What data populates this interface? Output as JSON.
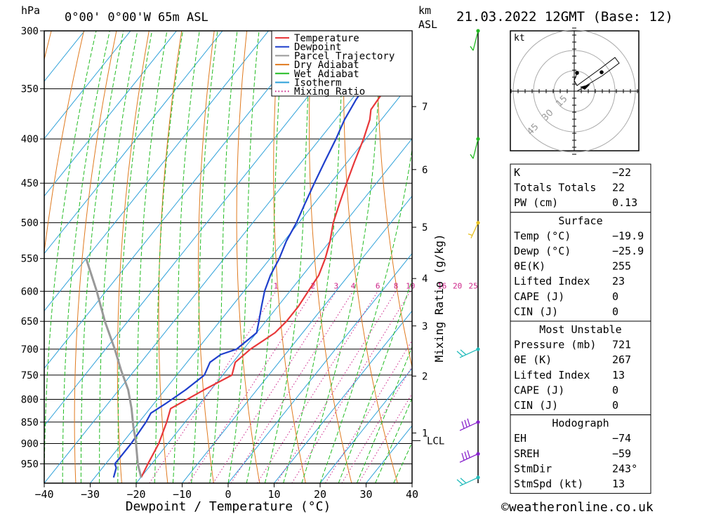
{
  "header": {
    "unit_left": "hPa",
    "location": "0°00' 0°00'W 65m ASL",
    "unit_right_1": "km",
    "unit_right_2": "ASL",
    "datetime": "21.03.2022 12GMT (Base: 12)"
  },
  "chart_data": {
    "type": "line",
    "xlabel": "Dewpoint / Temperature (°C)",
    "ylabel_left": "hPa",
    "ylabel_right": "Mixing Ratio (g/kg)",
    "xlim": [
      -40,
      40
    ],
    "ylim": [
      300,
      1000
    ],
    "x_ticks": [
      -40,
      -30,
      -20,
      -10,
      0,
      10,
      20,
      30,
      40
    ],
    "x_tick_labels": [
      "−40",
      "−30",
      "−20",
      "−10",
      "0",
      "10",
      "20",
      "30",
      "40"
    ],
    "pressure_ticks": [
      300,
      350,
      400,
      450,
      500,
      550,
      600,
      650,
      700,
      750,
      800,
      850,
      900,
      950
    ],
    "km_ticks": [
      {
        "km": "1",
        "p": 875
      },
      {
        "km": "2",
        "p": 752
      },
      {
        "km": "3",
        "p": 658
      },
      {
        "km": "4",
        "p": 580
      },
      {
        "km": "5",
        "p": 506
      },
      {
        "km": "6",
        "p": 434
      },
      {
        "km": "7",
        "p": 367
      }
    ],
    "lcl": {
      "label": "LCL",
      "p": 893
    },
    "mixing_ratio_labels": [
      "1",
      "2",
      "3",
      "4",
      "6",
      "8",
      "10",
      "16",
      "20",
      "25"
    ],
    "legend": {
      "placement": "top-center",
      "entries": [
        {
          "name": "Temperature",
          "color": "#e8383a",
          "style": "solid"
        },
        {
          "name": "Dewpoint",
          "color": "#1f3fcc",
          "style": "solid"
        },
        {
          "name": "Parcel Trajectory",
          "color": "#999999",
          "style": "solid"
        },
        {
          "name": "Dry Adiabat",
          "color": "#e07a1f",
          "style": "solid"
        },
        {
          "name": "Wet Adiabat",
          "color": "#22bb22",
          "style": "solid"
        },
        {
          "name": "Isotherm",
          "color": "#2a9fd8",
          "style": "solid"
        },
        {
          "name": "Mixing Ratio",
          "color": "#cc2288",
          "style": "dotted"
        }
      ]
    },
    "series": [
      {
        "name": "Temperature",
        "points": [
          [
            -19.9,
            985
          ],
          [
            -20.8,
            950
          ],
          [
            -22.0,
            900
          ],
          [
            -24.0,
            850
          ],
          [
            -25.5,
            820
          ],
          [
            -21.5,
            780
          ],
          [
            -18.0,
            750
          ],
          [
            -19.5,
            725
          ],
          [
            -18.5,
            700
          ],
          [
            -16.0,
            670
          ],
          [
            -15.5,
            650
          ],
          [
            -15.5,
            625
          ],
          [
            -16.0,
            600
          ],
          [
            -16.5,
            575
          ],
          [
            -18.0,
            550
          ],
          [
            -20.0,
            525
          ],
          [
            -22.5,
            500
          ],
          [
            -24.5,
            475
          ],
          [
            -26.5,
            450
          ],
          [
            -28.5,
            425
          ],
          [
            -30.5,
            400
          ],
          [
            -32.5,
            380
          ],
          [
            -34.0,
            370
          ],
          [
            -34.5,
            350
          ],
          [
            -34.5,
            330
          ],
          [
            -34.5,
            310
          ],
          [
            -33.5,
            300
          ]
        ]
      },
      {
        "name": "Dewpoint",
        "points": [
          [
            -25.9,
            985
          ],
          [
            -27.0,
            960
          ],
          [
            -28.0,
            950
          ],
          [
            -28.0,
            900
          ],
          [
            -28.5,
            850
          ],
          [
            -29.0,
            830
          ],
          [
            -27.5,
            810
          ],
          [
            -25.5,
            780
          ],
          [
            -24.0,
            750
          ],
          [
            -25.0,
            725
          ],
          [
            -24.0,
            710
          ],
          [
            -21.5,
            700
          ],
          [
            -20.0,
            670
          ],
          [
            -21.5,
            650
          ],
          [
            -23.5,
            625
          ],
          [
            -25.5,
            600
          ],
          [
            -27.0,
            575
          ],
          [
            -28.0,
            550
          ],
          [
            -29.5,
            525
          ],
          [
            -30.5,
            500
          ],
          [
            -32.0,
            475
          ],
          [
            -33.5,
            450
          ],
          [
            -35.0,
            425
          ],
          [
            -36.5,
            400
          ],
          [
            -38.0,
            380
          ],
          [
            -39.0,
            360
          ],
          [
            -39.5,
            340
          ],
          [
            -39.5,
            320
          ],
          [
            -38.5,
            300
          ]
        ]
      },
      {
        "name": "Parcel Trajectory",
        "points": [
          [
            -19.9,
            985
          ],
          [
            -23.0,
            950
          ],
          [
            -27.5,
            893
          ],
          [
            -30.5,
            860
          ],
          [
            -34.0,
            820
          ],
          [
            -38.0,
            780
          ],
          [
            -43.0,
            740
          ],
          [
            -48.0,
            700
          ],
          [
            -55.0,
            650
          ],
          [
            -62.0,
            600
          ],
          [
            -70.0,
            550
          ]
        ]
      }
    ],
    "wind_barbs": [
      {
        "p": 300,
        "color": "#22bb22"
      },
      {
        "p": 400,
        "color": "#22bb22"
      },
      {
        "p": 500,
        "color": "#e8c020"
      },
      {
        "p": 700,
        "color": "#22bbbb"
      },
      {
        "p": 850,
        "color": "#8822cc"
      },
      {
        "p": 925,
        "color": "#8822cc"
      },
      {
        "p": 985,
        "color": "#22bbbb"
      }
    ]
  },
  "hodograph": {
    "unit": "kt",
    "ring_labels": [
      "15",
      "30",
      "45"
    ]
  },
  "indices": {
    "rows": [
      {
        "label": "K",
        "value": "−22"
      },
      {
        "label": "Totals Totals",
        "value": "22"
      },
      {
        "label": "PW (cm)",
        "value": "0.13"
      }
    ]
  },
  "surface": {
    "title": "Surface",
    "rows": [
      {
        "label": "Temp (°C)",
        "value": "−19.9"
      },
      {
        "label": "Dewp (°C)",
        "value": "−25.9"
      },
      {
        "label": "θE(K)",
        "value": "255"
      },
      {
        "label": "Lifted Index",
        "value": "23"
      },
      {
        "label": "CAPE (J)",
        "value": "0"
      },
      {
        "label": "CIN (J)",
        "value": "0"
      }
    ]
  },
  "most_unstable": {
    "title": "Most Unstable",
    "rows": [
      {
        "label": "Pressure (mb)",
        "value": "721"
      },
      {
        "label": "θE (K)",
        "value": "267"
      },
      {
        "label": "Lifted Index",
        "value": "13"
      },
      {
        "label": "CAPE (J)",
        "value": "0"
      },
      {
        "label": "CIN (J)",
        "value": "0"
      }
    ]
  },
  "hodograph_params": {
    "title": "Hodograph",
    "rows": [
      {
        "label": "EH",
        "value": "−74"
      },
      {
        "label": "SREH",
        "value": "−59"
      },
      {
        "label": "StmDir",
        "value": "243°"
      },
      {
        "label": "StmSpd (kt)",
        "value": "13"
      }
    ]
  },
  "footer": {
    "copyright": "©weatheronline.co.uk"
  }
}
